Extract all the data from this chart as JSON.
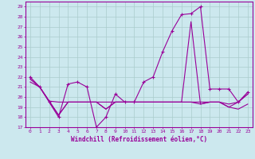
{
  "xlabel": "Windchill (Refroidissement éolien,°C)",
  "background_color": "#cce8ee",
  "grid_color": "#aacccc",
  "line_color": "#990099",
  "xlim": [
    -0.5,
    23.5
  ],
  "ylim": [
    17,
    29.5
  ],
  "xticks": [
    0,
    1,
    2,
    3,
    4,
    5,
    6,
    7,
    8,
    9,
    10,
    11,
    12,
    13,
    14,
    15,
    16,
    17,
    18,
    19,
    20,
    21,
    22,
    23
  ],
  "yticks": [
    17,
    18,
    19,
    20,
    21,
    22,
    23,
    24,
    25,
    26,
    27,
    28,
    29
  ],
  "line1_x": [
    0,
    1,
    2,
    3,
    4,
    5,
    6,
    7,
    8,
    9,
    10,
    11,
    12,
    13,
    14,
    15,
    16,
    17,
    18,
    19,
    20,
    21,
    22,
    23
  ],
  "line1_y": [
    22.0,
    21.0,
    19.5,
    18.0,
    21.3,
    21.5,
    21.0,
    17.0,
    18.0,
    20.3,
    19.5,
    19.5,
    21.5,
    22.0,
    24.5,
    26.6,
    28.2,
    28.3,
    29.0,
    20.8,
    20.8,
    20.8,
    19.5,
    20.5
  ],
  "line2_x": [
    0,
    1,
    2,
    3,
    4,
    5,
    6,
    7,
    8,
    9,
    10,
    11,
    12,
    13,
    14,
    15,
    16,
    17,
    18,
    19,
    20,
    21,
    22,
    23
  ],
  "line2_y": [
    21.5,
    21.0,
    19.6,
    19.5,
    19.5,
    19.5,
    19.5,
    19.5,
    19.5,
    19.5,
    19.5,
    19.5,
    19.5,
    19.5,
    19.5,
    19.5,
    19.5,
    19.5,
    19.5,
    19.5,
    19.5,
    19.3,
    19.5,
    20.3
  ],
  "line3_x": [
    0,
    1,
    2,
    3,
    4,
    5,
    6,
    7,
    8,
    9,
    10,
    11,
    12,
    13,
    14,
    15,
    16,
    17,
    18,
    19,
    20,
    21,
    22,
    23
  ],
  "line3_y": [
    21.8,
    21.0,
    19.6,
    18.2,
    19.5,
    19.5,
    19.5,
    19.5,
    18.8,
    19.5,
    19.5,
    19.5,
    19.5,
    19.5,
    19.5,
    19.5,
    19.5,
    19.5,
    19.3,
    19.5,
    19.5,
    19.0,
    18.8,
    19.3
  ],
  "line4_x": [
    0,
    1,
    2,
    3,
    4,
    5,
    6,
    7,
    8,
    9,
    10,
    11,
    12,
    13,
    14,
    15,
    16,
    17,
    18,
    19,
    20,
    21,
    22,
    23
  ],
  "line4_y": [
    21.8,
    21.0,
    19.6,
    18.2,
    19.5,
    19.5,
    19.5,
    19.5,
    18.8,
    19.5,
    19.5,
    19.5,
    19.5,
    19.5,
    19.5,
    19.5,
    19.5,
    27.5,
    19.3,
    19.5,
    19.5,
    19.0,
    19.5,
    20.3
  ]
}
